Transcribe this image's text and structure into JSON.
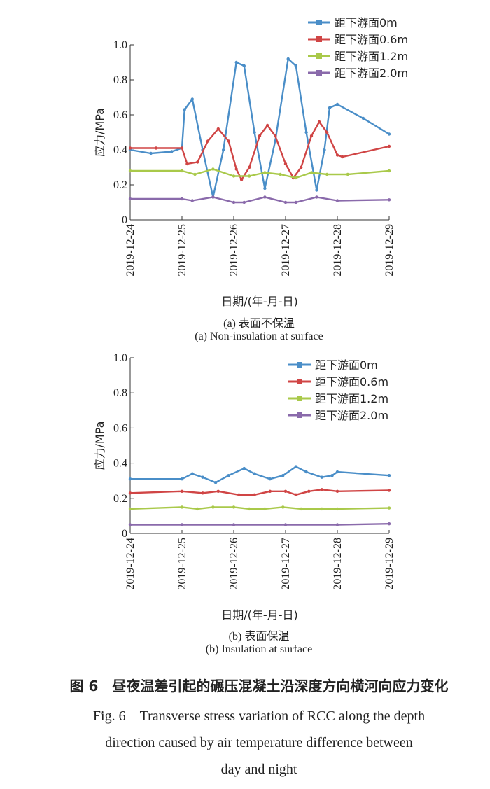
{
  "chart_data": [
    {
      "type": "line",
      "panel_label": "(a) 表面不保温",
      "subtitle_en": "(a) Non-insulation at surface",
      "xlabel": "日期/(年-月-日)",
      "ylabel": "应力/MPa",
      "ylim": [
        0,
        1.0
      ],
      "yticks": [
        "0",
        "0.2",
        "0.4",
        "0.6",
        "0.8",
        "1.0"
      ],
      "xticks": [
        "2019-12-24",
        "2019-12-25",
        "2019-12-26",
        "2019-12-27",
        "2019-12-28",
        "2019-12-29"
      ],
      "legend_position": "top-right",
      "series": [
        {
          "name": "距下游面0m",
          "color": "#4a8ec8",
          "points": [
            [
              0,
              0.4
            ],
            [
              0.4,
              0.38
            ],
            [
              0.8,
              0.39
            ],
            [
              1.0,
              0.41
            ],
            [
              1.05,
              0.63
            ],
            [
              1.2,
              0.69
            ],
            [
              1.4,
              0.4
            ],
            [
              1.6,
              0.13
            ],
            [
              1.8,
              0.4
            ],
            [
              2.05,
              0.9
            ],
            [
              2.2,
              0.88
            ],
            [
              2.4,
              0.5
            ],
            [
              2.6,
              0.18
            ],
            [
              2.8,
              0.45
            ],
            [
              3.05,
              0.92
            ],
            [
              3.2,
              0.88
            ],
            [
              3.4,
              0.5
            ],
            [
              3.6,
              0.17
            ],
            [
              3.75,
              0.4
            ],
            [
              3.85,
              0.64
            ],
            [
              4.0,
              0.66
            ],
            [
              4.5,
              0.58
            ],
            [
              5.0,
              0.49
            ]
          ]
        },
        {
          "name": "距下游面0.6m",
          "color": "#d04545",
          "points": [
            [
              0,
              0.41
            ],
            [
              0.5,
              0.41
            ],
            [
              1.0,
              0.41
            ],
            [
              1.1,
              0.32
            ],
            [
              1.3,
              0.33
            ],
            [
              1.5,
              0.45
            ],
            [
              1.7,
              0.52
            ],
            [
              1.9,
              0.45
            ],
            [
              2.05,
              0.29
            ],
            [
              2.15,
              0.23
            ],
            [
              2.3,
              0.3
            ],
            [
              2.5,
              0.48
            ],
            [
              2.65,
              0.54
            ],
            [
              2.8,
              0.48
            ],
            [
              3.0,
              0.32
            ],
            [
              3.15,
              0.24
            ],
            [
              3.3,
              0.3
            ],
            [
              3.5,
              0.48
            ],
            [
              3.65,
              0.56
            ],
            [
              3.8,
              0.5
            ],
            [
              4.0,
              0.37
            ],
            [
              4.1,
              0.36
            ],
            [
              5.0,
              0.42
            ]
          ]
        },
        {
          "name": "距下游面1.2m",
          "color": "#a9c94a",
          "points": [
            [
              0,
              0.28
            ],
            [
              1.0,
              0.28
            ],
            [
              1.25,
              0.26
            ],
            [
              1.6,
              0.29
            ],
            [
              2.0,
              0.25
            ],
            [
              2.3,
              0.25
            ],
            [
              2.6,
              0.27
            ],
            [
              2.9,
              0.26
            ],
            [
              3.2,
              0.24
            ],
            [
              3.5,
              0.27
            ],
            [
              3.8,
              0.26
            ],
            [
              4.2,
              0.26
            ],
            [
              5.0,
              0.28
            ]
          ]
        },
        {
          "name": "距下游面2.0m",
          "color": "#8a6aab",
          "points": [
            [
              0,
              0.12
            ],
            [
              1.0,
              0.12
            ],
            [
              1.2,
              0.11
            ],
            [
              1.6,
              0.13
            ],
            [
              2.0,
              0.1
            ],
            [
              2.2,
              0.1
            ],
            [
              2.6,
              0.13
            ],
            [
              3.0,
              0.1
            ],
            [
              3.2,
              0.1
            ],
            [
              3.6,
              0.13
            ],
            [
              4.0,
              0.11
            ],
            [
              5.0,
              0.115
            ]
          ]
        }
      ]
    },
    {
      "type": "line",
      "panel_label": "(b) 表面保温",
      "subtitle_en": "(b) Insulation at surface",
      "xlabel": "日期/(年-月-日)",
      "ylabel": "应力/MPa",
      "ylim": [
        0,
        1.0
      ],
      "yticks": [
        "0",
        "0.2",
        "0.4",
        "0.6",
        "0.8",
        "1.0"
      ],
      "xticks": [
        "2019-12-24",
        "2019-12-25",
        "2019-12-26",
        "2019-12-27",
        "2019-12-28",
        "2019-12-29"
      ],
      "legend_position": "top-right",
      "series": [
        {
          "name": "距下游面0m",
          "color": "#4a8ec8",
          "points": [
            [
              0,
              0.31
            ],
            [
              1.0,
              0.31
            ],
            [
              1.2,
              0.34
            ],
            [
              1.4,
              0.32
            ],
            [
              1.65,
              0.29
            ],
            [
              1.9,
              0.33
            ],
            [
              2.2,
              0.37
            ],
            [
              2.4,
              0.34
            ],
            [
              2.7,
              0.31
            ],
            [
              2.95,
              0.33
            ],
            [
              3.2,
              0.38
            ],
            [
              3.4,
              0.35
            ],
            [
              3.7,
              0.32
            ],
            [
              3.9,
              0.33
            ],
            [
              4.0,
              0.35
            ],
            [
              5.0,
              0.33
            ]
          ]
        },
        {
          "name": "距下游面0.6m",
          "color": "#d04545",
          "points": [
            [
              0,
              0.23
            ],
            [
              1.0,
              0.24
            ],
            [
              1.4,
              0.23
            ],
            [
              1.7,
              0.24
            ],
            [
              2.1,
              0.22
            ],
            [
              2.4,
              0.22
            ],
            [
              2.7,
              0.24
            ],
            [
              3.0,
              0.24
            ],
            [
              3.2,
              0.22
            ],
            [
              3.45,
              0.24
            ],
            [
              3.7,
              0.25
            ],
            [
              4.0,
              0.24
            ],
            [
              5.0,
              0.245
            ]
          ]
        },
        {
          "name": "距下游面1.2m",
          "color": "#a9c94a",
          "points": [
            [
              0,
              0.14
            ],
            [
              1.0,
              0.15
            ],
            [
              1.3,
              0.14
            ],
            [
              1.6,
              0.15
            ],
            [
              2.0,
              0.15
            ],
            [
              2.3,
              0.14
            ],
            [
              2.6,
              0.14
            ],
            [
              2.95,
              0.15
            ],
            [
              3.3,
              0.14
            ],
            [
              3.7,
              0.14
            ],
            [
              4.0,
              0.14
            ],
            [
              5.0,
              0.145
            ]
          ]
        },
        {
          "name": "距下游面2.0m",
          "color": "#8a6aab",
          "points": [
            [
              0,
              0.05
            ],
            [
              1.0,
              0.05
            ],
            [
              2.0,
              0.05
            ],
            [
              3.0,
              0.05
            ],
            [
              4.0,
              0.05
            ],
            [
              5.0,
              0.055
            ]
          ]
        }
      ]
    }
  ],
  "captions": {
    "panel_a_zh": "(a) 表面不保温",
    "panel_a_en": "(a) Non-insulation at surface",
    "panel_b_zh": "(b) 表面保温",
    "panel_b_en": "(b) Insulation at surface",
    "figure_zh": "图 6　昼夜温差引起的碾压混凝土沿深度方向横河向应力变化",
    "figure_en_line1": "Fig. 6　Transverse stress variation of RCC along the depth",
    "figure_en_line2": "direction caused by air temperature difference between",
    "figure_en_line3": "day and night"
  }
}
